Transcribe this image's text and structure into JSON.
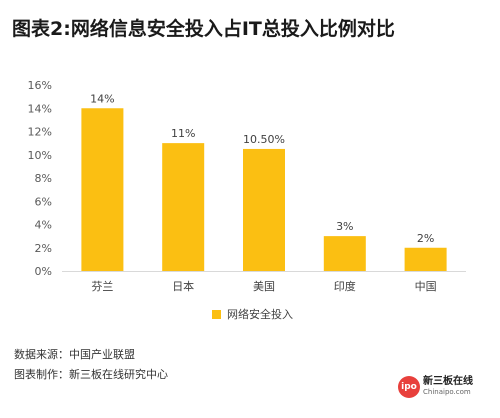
{
  "title": "图表2:网络信息安全投入占IT总投入比例对比",
  "chart_data": {
    "type": "bar",
    "categories": [
      "芬兰",
      "日本",
      "美国",
      "印度",
      "中国"
    ],
    "values": [
      14,
      11,
      10.5,
      3,
      2
    ],
    "data_labels": [
      "14%",
      "11%",
      "10.50%",
      "3%",
      "2%"
    ],
    "series": [
      {
        "name": "网络安全投入",
        "values": [
          14,
          11,
          10.5,
          3,
          2
        ]
      }
    ],
    "y_ticks": [
      "0%",
      "2%",
      "4%",
      "6%",
      "8%",
      "10%",
      "12%",
      "14%",
      "16%"
    ],
    "ylim": [
      0,
      16
    ],
    "grid": false,
    "legend_position": "bottom",
    "bar_color": "#fbbf12"
  },
  "legend": {
    "label": "网络安全投入"
  },
  "footer": {
    "source": "数据来源：中国产业联盟",
    "credit": "图表制作：新三板在线研究中心"
  },
  "logo": {
    "badge": "ipo",
    "name": "新三板在线",
    "site": "Chinaipo.com"
  }
}
